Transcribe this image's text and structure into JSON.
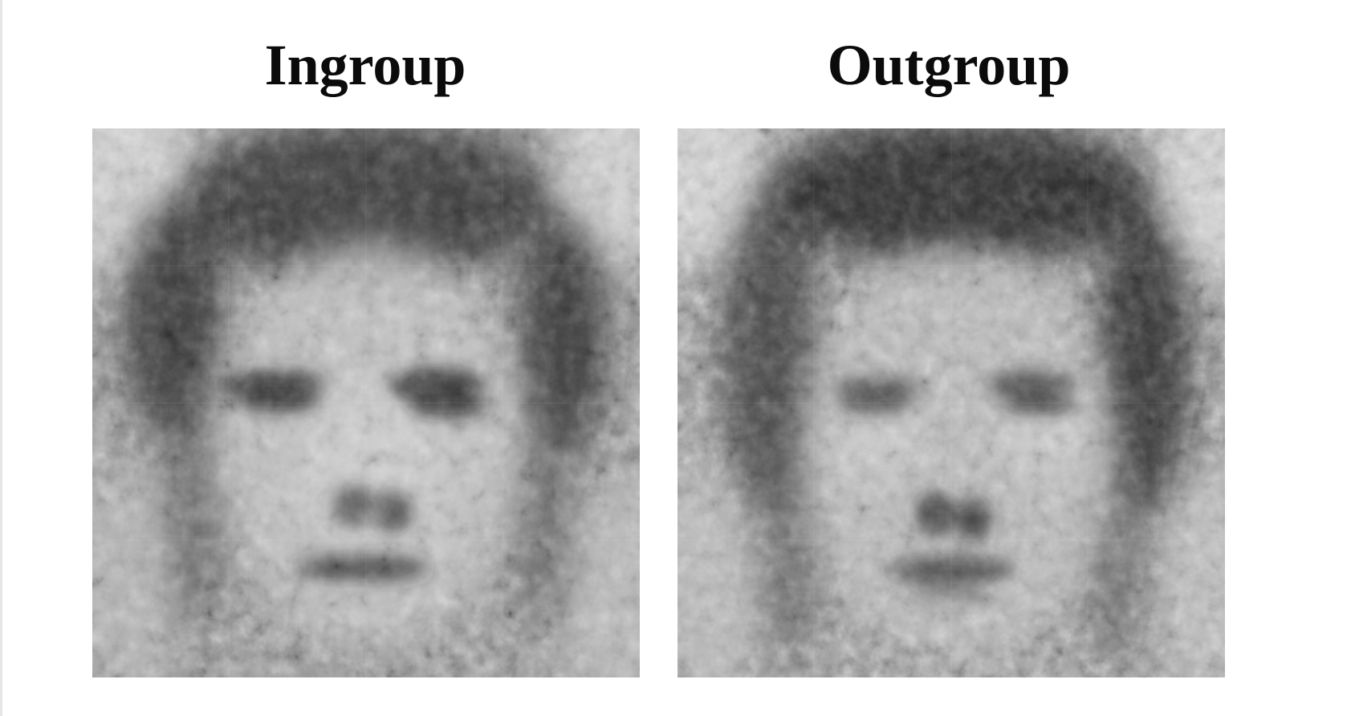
{
  "figure": {
    "panels": [
      {
        "title": "Ingroup",
        "image_description_icon": "noisy-classification-face-image"
      },
      {
        "title": "Outgroup",
        "image_description_icon": "noisy-classification-face-image"
      }
    ]
  }
}
